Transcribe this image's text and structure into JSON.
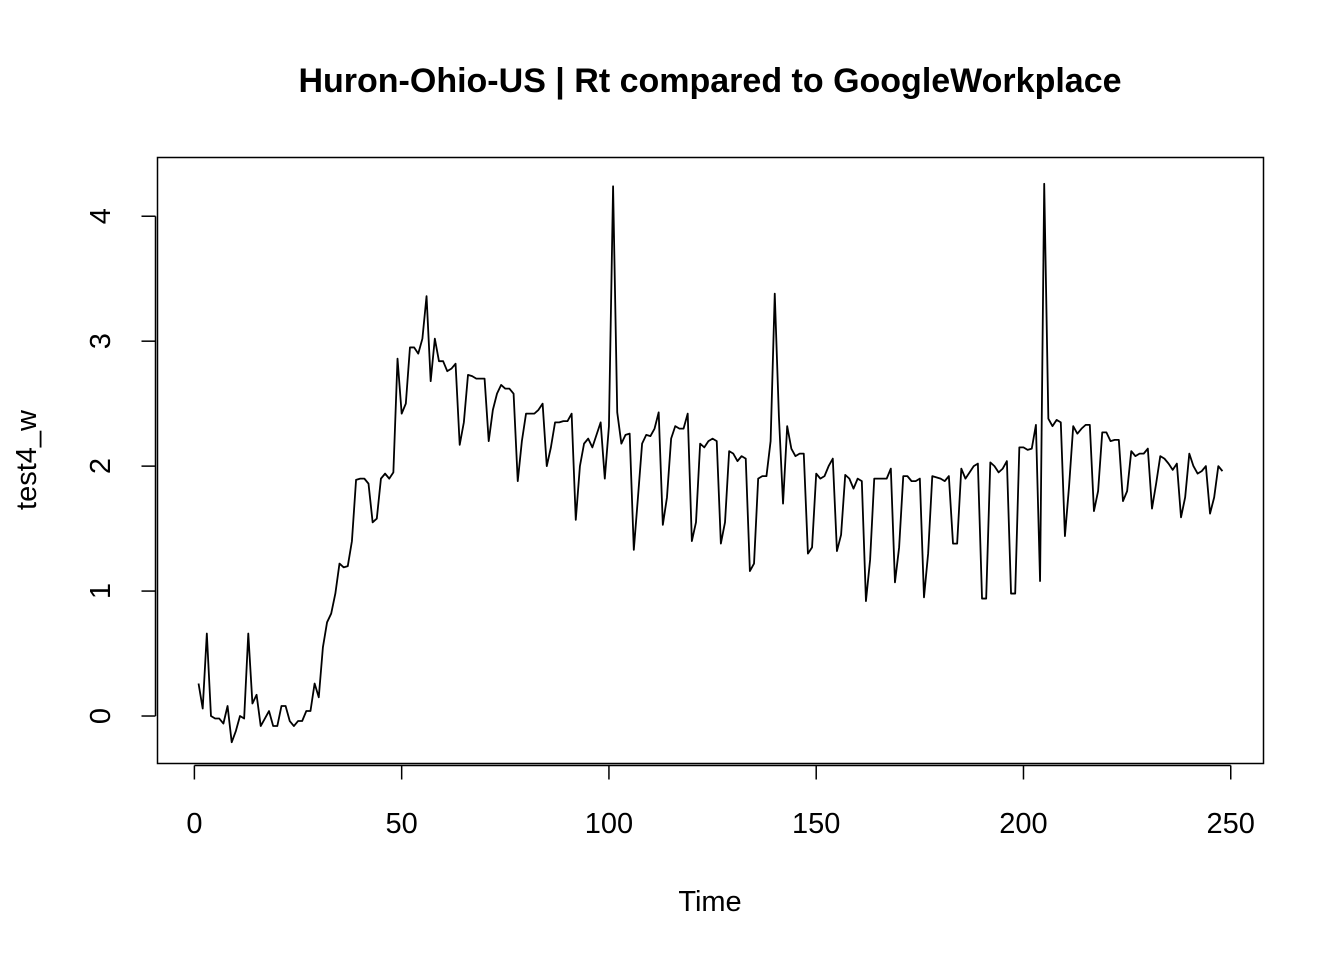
{
  "chart_data": {
    "type": "line",
    "title": "Huron-Ohio-US | Rt compared to GoogleWorkplace",
    "xlabel": "Time",
    "ylabel": "test4_w",
    "xlim": [
      -8.9,
      257.9
    ],
    "ylim": [
      -0.38,
      4.47
    ],
    "xticks": [
      0,
      50,
      100,
      150,
      200,
      250
    ],
    "yticks": [
      0,
      1,
      2,
      3,
      4
    ],
    "grid": false,
    "series": [
      {
        "name": "test4_w",
        "x": [
          1,
          2,
          3,
          4,
          5,
          6,
          7,
          8,
          9,
          10,
          11,
          12,
          13,
          14,
          15,
          16,
          17,
          18,
          19,
          20,
          21,
          22,
          23,
          24,
          25,
          26,
          27,
          28,
          29,
          30,
          31,
          32,
          33,
          34,
          35,
          36,
          37,
          38,
          39,
          40,
          41,
          42,
          43,
          44,
          45,
          46,
          47,
          48,
          49,
          50,
          51,
          52,
          53,
          54,
          55,
          56,
          57,
          58,
          59,
          60,
          61,
          62,
          63,
          64,
          65,
          66,
          67,
          68,
          69,
          70,
          71,
          72,
          73,
          74,
          75,
          76,
          77,
          78,
          79,
          80,
          81,
          82,
          83,
          84,
          85,
          86,
          87,
          88,
          89,
          90,
          91,
          92,
          93,
          94,
          95,
          96,
          97,
          98,
          99,
          100,
          101,
          102,
          103,
          104,
          105,
          106,
          107,
          108,
          109,
          110,
          111,
          112,
          113,
          114,
          115,
          116,
          117,
          118,
          119,
          120,
          121,
          122,
          123,
          124,
          125,
          126,
          127,
          128,
          129,
          130,
          131,
          132,
          133,
          134,
          135,
          136,
          137,
          138,
          139,
          140,
          141,
          142,
          143,
          144,
          145,
          146,
          147,
          148,
          149,
          150,
          151,
          152,
          153,
          154,
          155,
          156,
          157,
          158,
          159,
          160,
          161,
          162,
          163,
          164,
          165,
          166,
          167,
          168,
          169,
          170,
          171,
          172,
          173,
          174,
          175,
          176,
          177,
          178,
          179,
          180,
          181,
          182,
          183,
          184,
          185,
          186,
          187,
          188,
          189,
          190,
          191,
          192,
          193,
          194,
          195,
          196,
          197,
          198,
          199,
          200,
          201,
          202,
          203,
          204,
          205,
          206,
          207,
          208,
          209,
          210,
          211,
          212,
          213,
          214,
          215,
          216,
          217,
          218,
          219,
          220,
          221,
          222,
          223,
          224,
          225,
          226,
          227,
          228,
          229,
          230,
          231,
          232,
          233,
          234,
          235,
          236,
          237,
          238,
          239,
          240,
          241,
          242,
          243,
          244,
          245,
          246,
          247,
          248
        ],
        "y": [
          0.26,
          0.06,
          0.66,
          0.0,
          -0.02,
          -0.02,
          -0.06,
          0.08,
          -0.21,
          -0.12,
          0.0,
          -0.02,
          0.66,
          0.1,
          0.17,
          -0.08,
          -0.02,
          0.04,
          -0.08,
          -0.08,
          0.08,
          0.08,
          -0.04,
          -0.08,
          -0.04,
          -0.04,
          0.04,
          0.04,
          0.26,
          0.15,
          0.55,
          0.75,
          0.82,
          0.98,
          1.22,
          1.19,
          1.2,
          1.4,
          1.89,
          1.9,
          1.9,
          1.86,
          1.55,
          1.58,
          1.9,
          1.94,
          1.9,
          1.95,
          2.86,
          2.42,
          2.5,
          2.95,
          2.95,
          2.9,
          3.02,
          3.36,
          2.68,
          3.02,
          2.84,
          2.84,
          2.76,
          2.78,
          2.82,
          2.17,
          2.35,
          2.73,
          2.72,
          2.7,
          2.7,
          2.7,
          2.2,
          2.45,
          2.58,
          2.65,
          2.62,
          2.62,
          2.58,
          1.88,
          2.2,
          2.42,
          2.42,
          2.42,
          2.45,
          2.5,
          2.0,
          2.15,
          2.35,
          2.35,
          2.36,
          2.36,
          2.42,
          1.57,
          2.0,
          2.18,
          2.22,
          2.15,
          2.25,
          2.35,
          1.9,
          2.32,
          4.24,
          2.43,
          2.18,
          2.25,
          2.26,
          1.33,
          1.75,
          2.18,
          2.25,
          2.24,
          2.3,
          2.43,
          1.53,
          1.75,
          2.22,
          2.32,
          2.3,
          2.3,
          2.42,
          1.4,
          1.55,
          2.18,
          2.15,
          2.2,
          2.22,
          2.2,
          1.38,
          1.55,
          2.12,
          2.1,
          2.04,
          2.08,
          2.06,
          1.16,
          1.22,
          1.9,
          1.92,
          1.92,
          2.2,
          3.38,
          2.4,
          1.7,
          2.32,
          2.14,
          2.08,
          2.1,
          2.1,
          1.3,
          1.35,
          1.94,
          1.9,
          1.92,
          2.0,
          2.06,
          1.32,
          1.45,
          1.93,
          1.9,
          1.82,
          1.9,
          1.88,
          0.92,
          1.25,
          1.9,
          1.9,
          1.9,
          1.9,
          1.98,
          1.07,
          1.35,
          1.92,
          1.92,
          1.88,
          1.88,
          1.9,
          0.95,
          1.3,
          1.92,
          1.91,
          1.9,
          1.88,
          1.92,
          1.38,
          1.38,
          1.98,
          1.9,
          1.95,
          2.0,
          2.02,
          0.94,
          0.94,
          2.03,
          2.0,
          1.95,
          1.98,
          2.04,
          0.98,
          0.98,
          2.15,
          2.15,
          2.13,
          2.14,
          2.33,
          1.08,
          4.26,
          2.38,
          2.32,
          2.37,
          2.35,
          1.44,
          1.84,
          2.32,
          2.26,
          2.3,
          2.33,
          2.33,
          1.64,
          1.8,
          2.27,
          2.27,
          2.2,
          2.21,
          2.21,
          1.72,
          1.8,
          2.12,
          2.08,
          2.1,
          2.1,
          2.14,
          1.66,
          1.86,
          2.08,
          2.06,
          2.02,
          1.97,
          2.02,
          1.59,
          1.75,
          2.1,
          2.0,
          1.94,
          1.96,
          2.0,
          1.62,
          1.75,
          2.0,
          1.96
        ]
      }
    ]
  }
}
